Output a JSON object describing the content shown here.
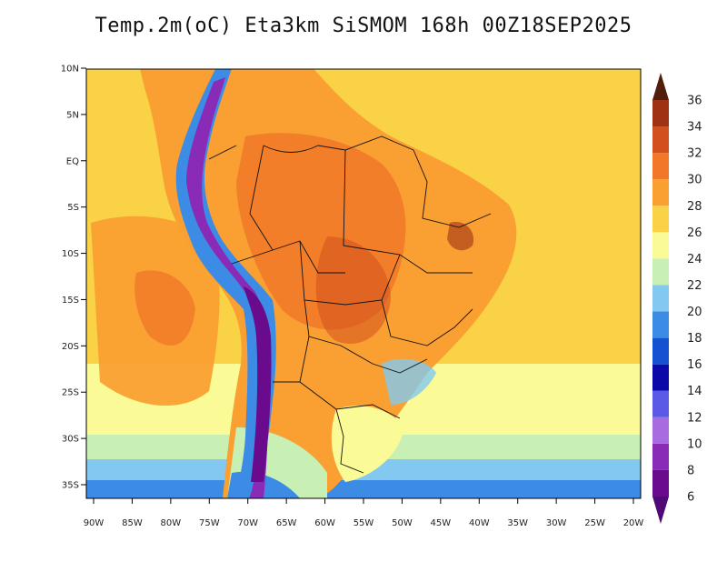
{
  "title": "Temp.2m(oC) Eta3km SiSMOM 168h 00Z18SEP2025",
  "map": {
    "variable": "2 m temperature",
    "units": "oC",
    "model": "Eta3km",
    "lon_range": [
      -90,
      -20
    ],
    "lat_range": [
      -37,
      11
    ],
    "lat_ticks": [
      {
        "lat": 10,
        "label": "10N"
      },
      {
        "lat": 5,
        "label": "5N"
      },
      {
        "lat": 0,
        "label": "EQ"
      },
      {
        "lat": -5,
        "label": "5S"
      },
      {
        "lat": -10,
        "label": "10S"
      },
      {
        "lat": -15,
        "label": "15S"
      },
      {
        "lat": -20,
        "label": "20S"
      },
      {
        "lat": -25,
        "label": "25S"
      },
      {
        "lat": -30,
        "label": "30S"
      },
      {
        "lat": -35,
        "label": "35S"
      }
    ],
    "lon_ticks": [
      {
        "lon": -90,
        "label": "90W"
      },
      {
        "lon": -85,
        "label": "85W"
      },
      {
        "lon": -80,
        "label": "80W"
      },
      {
        "lon": -75,
        "label": "75W"
      },
      {
        "lon": -70,
        "label": "70W"
      },
      {
        "lon": -65,
        "label": "65W"
      },
      {
        "lon": -60,
        "label": "60W"
      },
      {
        "lon": -55,
        "label": "55W"
      },
      {
        "lon": -50,
        "label": "50W"
      },
      {
        "lon": -45,
        "label": "45W"
      },
      {
        "lon": -40,
        "label": "40W"
      },
      {
        "lon": -35,
        "label": "35W"
      },
      {
        "lon": -30,
        "label": "30W"
      },
      {
        "lon": -25,
        "label": "25W"
      },
      {
        "lon": -20,
        "label": "20W"
      }
    ]
  },
  "colorbar": {
    "levels": [
      {
        "value": 6,
        "label": "6",
        "color": "#6a0a8c"
      },
      {
        "value": 8,
        "label": "8",
        "color": "#8a2bb8"
      },
      {
        "value": 10,
        "label": "10",
        "color": "#a86ce0"
      },
      {
        "value": 12,
        "label": "12",
        "color": "#5a5ae6"
      },
      {
        "value": 14,
        "label": "14",
        "color": "#0a0aa8"
      },
      {
        "value": 16,
        "label": "16",
        "color": "#1452d2"
      },
      {
        "value": 18,
        "label": "18",
        "color": "#3c8ce6"
      },
      {
        "value": 20,
        "label": "20",
        "color": "#82c8f0"
      },
      {
        "value": 22,
        "label": "22",
        "color": "#c8f0b4"
      },
      {
        "value": 24,
        "label": "24",
        "color": "#fafa96"
      },
      {
        "value": 26,
        "label": "26",
        "color": "#fad246"
      },
      {
        "value": 28,
        "label": "28",
        "color": "#faa032"
      },
      {
        "value": 30,
        "label": "30",
        "color": "#f07828"
      },
      {
        "value": 32,
        "label": "32",
        "color": "#d2501e"
      },
      {
        "value": 34,
        "label": "34",
        "color": "#a03214"
      },
      {
        "value": 36,
        "label": "36",
        "color": "#6e2814"
      }
    ],
    "under_color": "#500a78",
    "over_color": "#501e0a"
  }
}
